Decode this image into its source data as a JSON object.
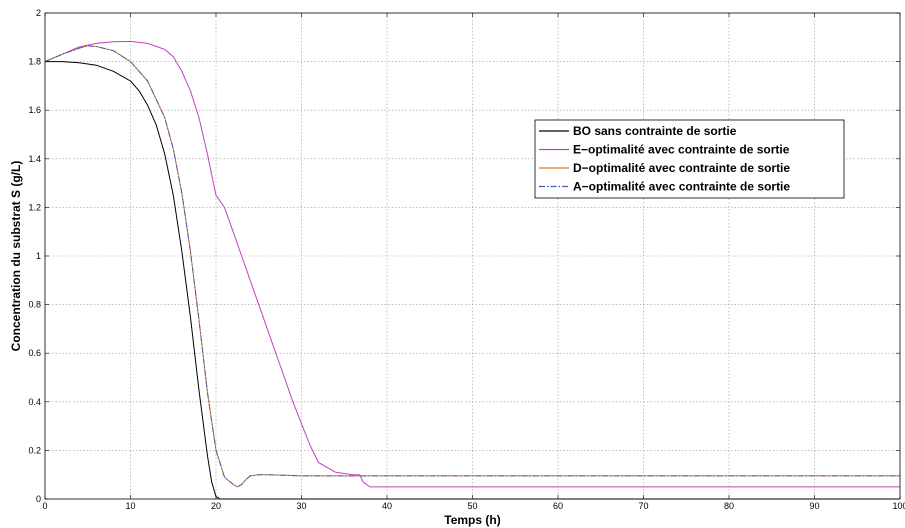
{
  "chart_data": {
    "type": "line",
    "title": "",
    "xlabel": "Temps (h)",
    "ylabel": "Concentration du substrat S (g/L)",
    "xlim": [
      0,
      100
    ],
    "ylim": [
      0,
      2
    ],
    "xticks": [
      0,
      10,
      20,
      30,
      40,
      50,
      60,
      70,
      80,
      90,
      100
    ],
    "yticks": [
      0,
      0.2,
      0.4,
      0.6,
      0.8,
      1,
      1.2,
      1.4,
      1.6,
      1.8,
      2
    ],
    "xtick_labels": [
      "0",
      "10",
      "20",
      "30",
      "40",
      "50",
      "60",
      "70",
      "80",
      "90",
      "100"
    ],
    "ytick_labels": [
      "0",
      "0.2",
      "0.4",
      "0.6",
      "0.8",
      "1",
      "1.2",
      "1.4",
      "1.6",
      "1.8",
      "2"
    ],
    "grid": true,
    "legend_position": "right",
    "series": [
      {
        "name": "BO sans contrainte de sortie",
        "color": "#000000",
        "dash": "solid",
        "x": [
          0,
          2,
          4,
          6,
          8,
          10,
          11,
          12,
          13,
          14,
          15,
          16,
          17,
          18,
          19,
          19.5,
          20,
          20.5,
          21,
          25,
          30,
          40,
          50,
          60,
          70,
          80,
          90,
          100
        ],
        "y": [
          1.8,
          1.8,
          1.795,
          1.785,
          1.76,
          1.72,
          1.68,
          1.62,
          1.54,
          1.42,
          1.25,
          1.02,
          0.75,
          0.45,
          0.18,
          0.07,
          0.01,
          0.0,
          0.0,
          0.0,
          0.0,
          0.0,
          0.0,
          0.0,
          0.0,
          0.0,
          0.0,
          0.0
        ]
      },
      {
        "name": "E−optimalité avec contrainte de sortie",
        "color": "#c140c1",
        "dash": "solid",
        "x": [
          0,
          2,
          4,
          6,
          8,
          10,
          12,
          14,
          15,
          16,
          17,
          18,
          19,
          20,
          21,
          22,
          24,
          26,
          28,
          29,
          30,
          31,
          32,
          34,
          36,
          36.8,
          37.2,
          38,
          40,
          50,
          60,
          70,
          80,
          90,
          100
        ],
        "y": [
          1.8,
          1.83,
          1.86,
          1.875,
          1.882,
          1.883,
          1.875,
          1.85,
          1.82,
          1.76,
          1.68,
          1.57,
          1.42,
          1.25,
          1.2,
          1.1,
          0.9,
          0.7,
          0.5,
          0.4,
          0.31,
          0.22,
          0.15,
          0.11,
          0.1,
          0.1,
          0.07,
          0.05,
          0.05,
          0.05,
          0.05,
          0.05,
          0.05,
          0.05,
          0.05
        ]
      },
      {
        "name": "D−optimalité avec contrainte de sortie",
        "color": "#e4761e",
        "dash": "solid",
        "x": [
          0,
          2,
          4,
          5,
          6,
          8,
          10,
          12,
          14,
          15,
          16,
          17,
          18,
          19,
          20,
          21,
          22,
          22.5,
          23,
          23.5,
          24,
          25,
          26,
          28,
          30,
          40,
          50,
          60,
          70,
          80,
          90,
          100
        ],
        "y": [
          1.8,
          1.83,
          1.855,
          1.865,
          1.862,
          1.845,
          1.8,
          1.72,
          1.57,
          1.44,
          1.26,
          1.02,
          0.74,
          0.44,
          0.2,
          0.09,
          0.06,
          0.05,
          0.06,
          0.08,
          0.095,
          0.1,
          0.1,
          0.098,
          0.095,
          0.095,
          0.095,
          0.095,
          0.095,
          0.095,
          0.095,
          0.095
        ]
      },
      {
        "name": "A−optimalité avec contrainte de sortie",
        "color": "#3a5fb4",
        "dash": "dashdot",
        "x": [
          0,
          2,
          4,
          5,
          6,
          8,
          10,
          12,
          14,
          15,
          16,
          17,
          18,
          19,
          20,
          21,
          22,
          22.5,
          23,
          23.5,
          24,
          25,
          26,
          28,
          30,
          40,
          50,
          60,
          70,
          80,
          90,
          100
        ],
        "y": [
          1.8,
          1.83,
          1.855,
          1.865,
          1.862,
          1.845,
          1.8,
          1.72,
          1.57,
          1.44,
          1.26,
          1.02,
          0.74,
          0.44,
          0.2,
          0.09,
          0.06,
          0.05,
          0.06,
          0.08,
          0.095,
          0.1,
          0.1,
          0.098,
          0.095,
          0.095,
          0.095,
          0.095,
          0.095,
          0.095,
          0.095,
          0.095
        ]
      }
    ]
  }
}
